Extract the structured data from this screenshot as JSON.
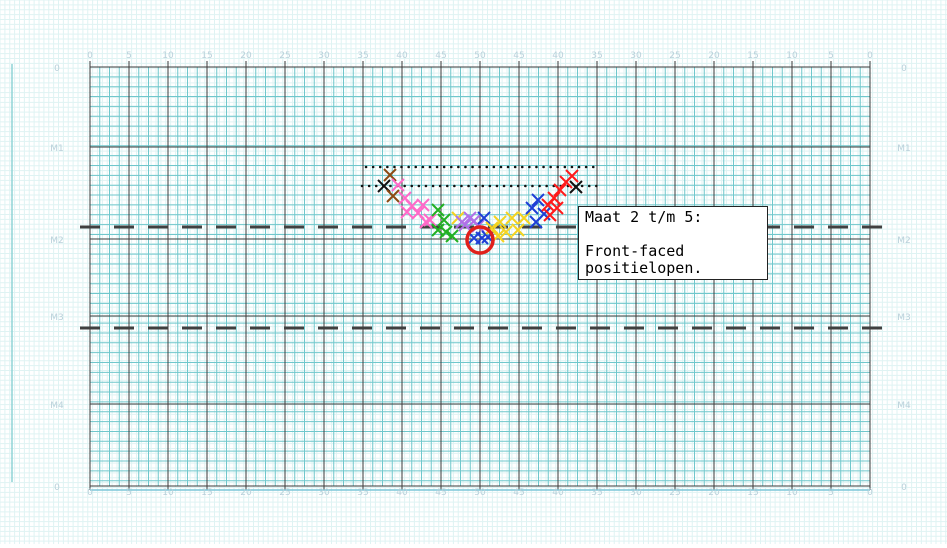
{
  "field": {
    "yard_labels": [
      "0",
      "5",
      "10",
      "15",
      "20",
      "25",
      "30",
      "35",
      "40",
      "45",
      "50",
      "45",
      "40",
      "35",
      "30",
      "25",
      "20",
      "15",
      "10",
      "5",
      "0"
    ],
    "measure_labels": [
      "0",
      "M1",
      "M2",
      "M3",
      "M4",
      "0"
    ],
    "colors": {
      "background_grid": "#dff3f3",
      "step_grid": "#6fc7cc",
      "yard_lines": "#3a3a3a",
      "dashed_lines": "#404040",
      "labels": "#b9d0da",
      "highlight_circle": "#e0201a"
    }
  },
  "annotation": {
    "title": "Maat 2 t/m 5:",
    "line2": "",
    "line3": "Front-faced",
    "line4": "positielopen."
  },
  "markers": {
    "colors": [
      "#8b4a12",
      "#ff69c8",
      "#22b022",
      "#b070e8",
      "#1d3fd6",
      "#f5d31f",
      "#ff1a1a",
      "#111111"
    ]
  }
}
